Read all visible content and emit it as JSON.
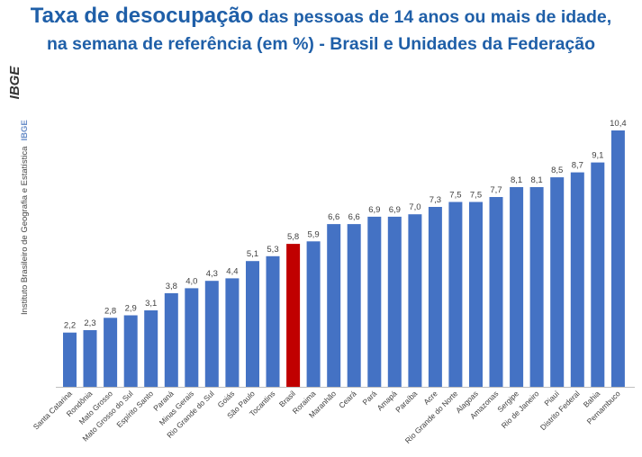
{
  "header": {
    "title_main": "Taxa de desocupação",
    "title_rest": " das pessoas de 14 anos ou mais de idade,",
    "title_line2": "na semana de referência (em %) - Brasil e Unidades da Federação"
  },
  "sidebar": {
    "logo_text": "IBGE",
    "institute": "Instituto Brasileiro de Geografia e Estatística",
    "abbr": "IBGE"
  },
  "colors": {
    "bar": "#4472c4",
    "highlight": "#c00000",
    "title": "#1f5fa8"
  },
  "chart_data": {
    "type": "bar",
    "title": "Taxa de desocupação das pessoas de 14 anos ou mais de idade, na semana de referência (em %) - Brasil e Unidades da Federação",
    "xlabel": "",
    "ylabel": "",
    "categories": [
      "Santa Catarina",
      "Rondônia",
      "Mato Grosso",
      "Mato Grosso do Sul",
      "Espírito Santo",
      "Paraná",
      "Minas Gerais",
      "Rio Grande do Sul",
      "Goiás",
      "São Paulo",
      "Tocantins",
      "Brasil",
      "Roraima",
      "Maranhão",
      "Ceará",
      "Pará",
      "Amapá",
      "Paraíba",
      "Acre",
      "Rio Grande do Norte",
      "Alagoas",
      "Amazonas",
      "Sergipe",
      "Rio de Janeiro",
      "Piauí",
      "Distrito Federal",
      "Bahia",
      "Pernambuco"
    ],
    "values": [
      2.2,
      2.3,
      2.8,
      2.9,
      3.1,
      3.8,
      4.0,
      4.3,
      4.4,
      5.1,
      5.3,
      5.8,
      5.9,
      6.6,
      6.6,
      6.9,
      6.9,
      7.0,
      7.3,
      7.5,
      7.5,
      7.7,
      8.1,
      8.1,
      8.5,
      8.7,
      9.1,
      10.4
    ],
    "value_labels": [
      "2,2",
      "2,3",
      "2,8",
      "2,9",
      "3,1",
      "3,8",
      "4,0",
      "4,3",
      "4,4",
      "5,1",
      "5,3",
      "5,8",
      "5,9",
      "6,6",
      "6,6",
      "6,9",
      "6,9",
      "7,0",
      "7,3",
      "7,5",
      "7,5",
      "7,7",
      "8,1",
      "8,1",
      "8,5",
      "8,7",
      "9,1",
      "10,4"
    ],
    "highlight": "Brasil",
    "ylim": [
      0,
      10.4
    ],
    "grid": false,
    "legend": "none"
  }
}
